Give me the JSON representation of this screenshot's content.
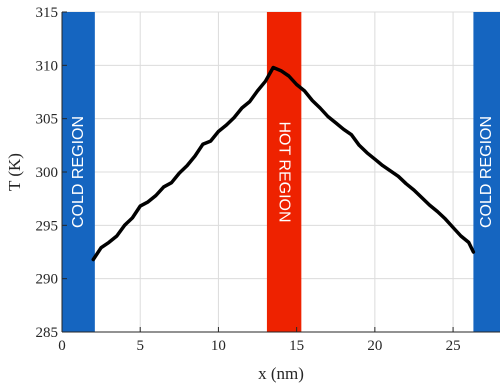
{
  "chart_data": {
    "type": "line",
    "xlabel": "x (nm)",
    "ylabel": "T (K)",
    "xlim": [
      0,
      28
    ],
    "ylim": [
      285,
      315
    ],
    "xticks": [
      0,
      5,
      10,
      15,
      20,
      25
    ],
    "yticks": [
      285,
      290,
      295,
      300,
      305,
      310,
      315
    ],
    "grid": true,
    "regions": [
      {
        "label": "COLD REGION",
        "x0": 0,
        "x1": 2.1,
        "color": "#1565c0"
      },
      {
        "label": "HOT REGION",
        "x0": 13.1,
        "x1": 15.3,
        "color": "#ee2200"
      },
      {
        "label": "COLD REGION",
        "x0": 26.3,
        "x1": 28,
        "color": "#1565c0"
      }
    ],
    "series": [
      {
        "color": "#000000",
        "x": [
          2.0,
          2.5,
          3.0,
          3.5,
          4.0,
          4.5,
          5.0,
          5.5,
          6.0,
          6.5,
          7.0,
          7.5,
          8.0,
          8.5,
          9.0,
          9.5,
          10.0,
          10.5,
          11.0,
          11.5,
          12.0,
          12.5,
          13.0,
          13.5,
          14.0,
          14.5,
          15.0,
          15.5,
          16.0,
          16.5,
          17.0,
          17.5,
          18.0,
          18.5,
          19.0,
          19.5,
          20.0,
          20.5,
          21.0,
          21.5,
          22.0,
          22.5,
          23.0,
          23.5,
          24.0,
          24.5,
          25.0,
          25.5,
          26.0,
          26.3
        ],
        "y": [
          291.8,
          292.9,
          293.4,
          294.0,
          295.0,
          295.7,
          296.8,
          297.2,
          297.8,
          298.6,
          299.0,
          299.9,
          300.6,
          301.5,
          302.6,
          302.9,
          303.8,
          304.4,
          305.1,
          306.0,
          306.6,
          307.6,
          308.5,
          309.8,
          309.5,
          309.0,
          308.2,
          307.6,
          306.7,
          306.0,
          305.2,
          304.6,
          304.0,
          303.5,
          302.5,
          301.8,
          301.2,
          300.6,
          300.1,
          299.6,
          298.9,
          298.3,
          297.6,
          296.9,
          296.3,
          295.6,
          294.8,
          294.0,
          293.4,
          292.5
        ]
      }
    ]
  }
}
